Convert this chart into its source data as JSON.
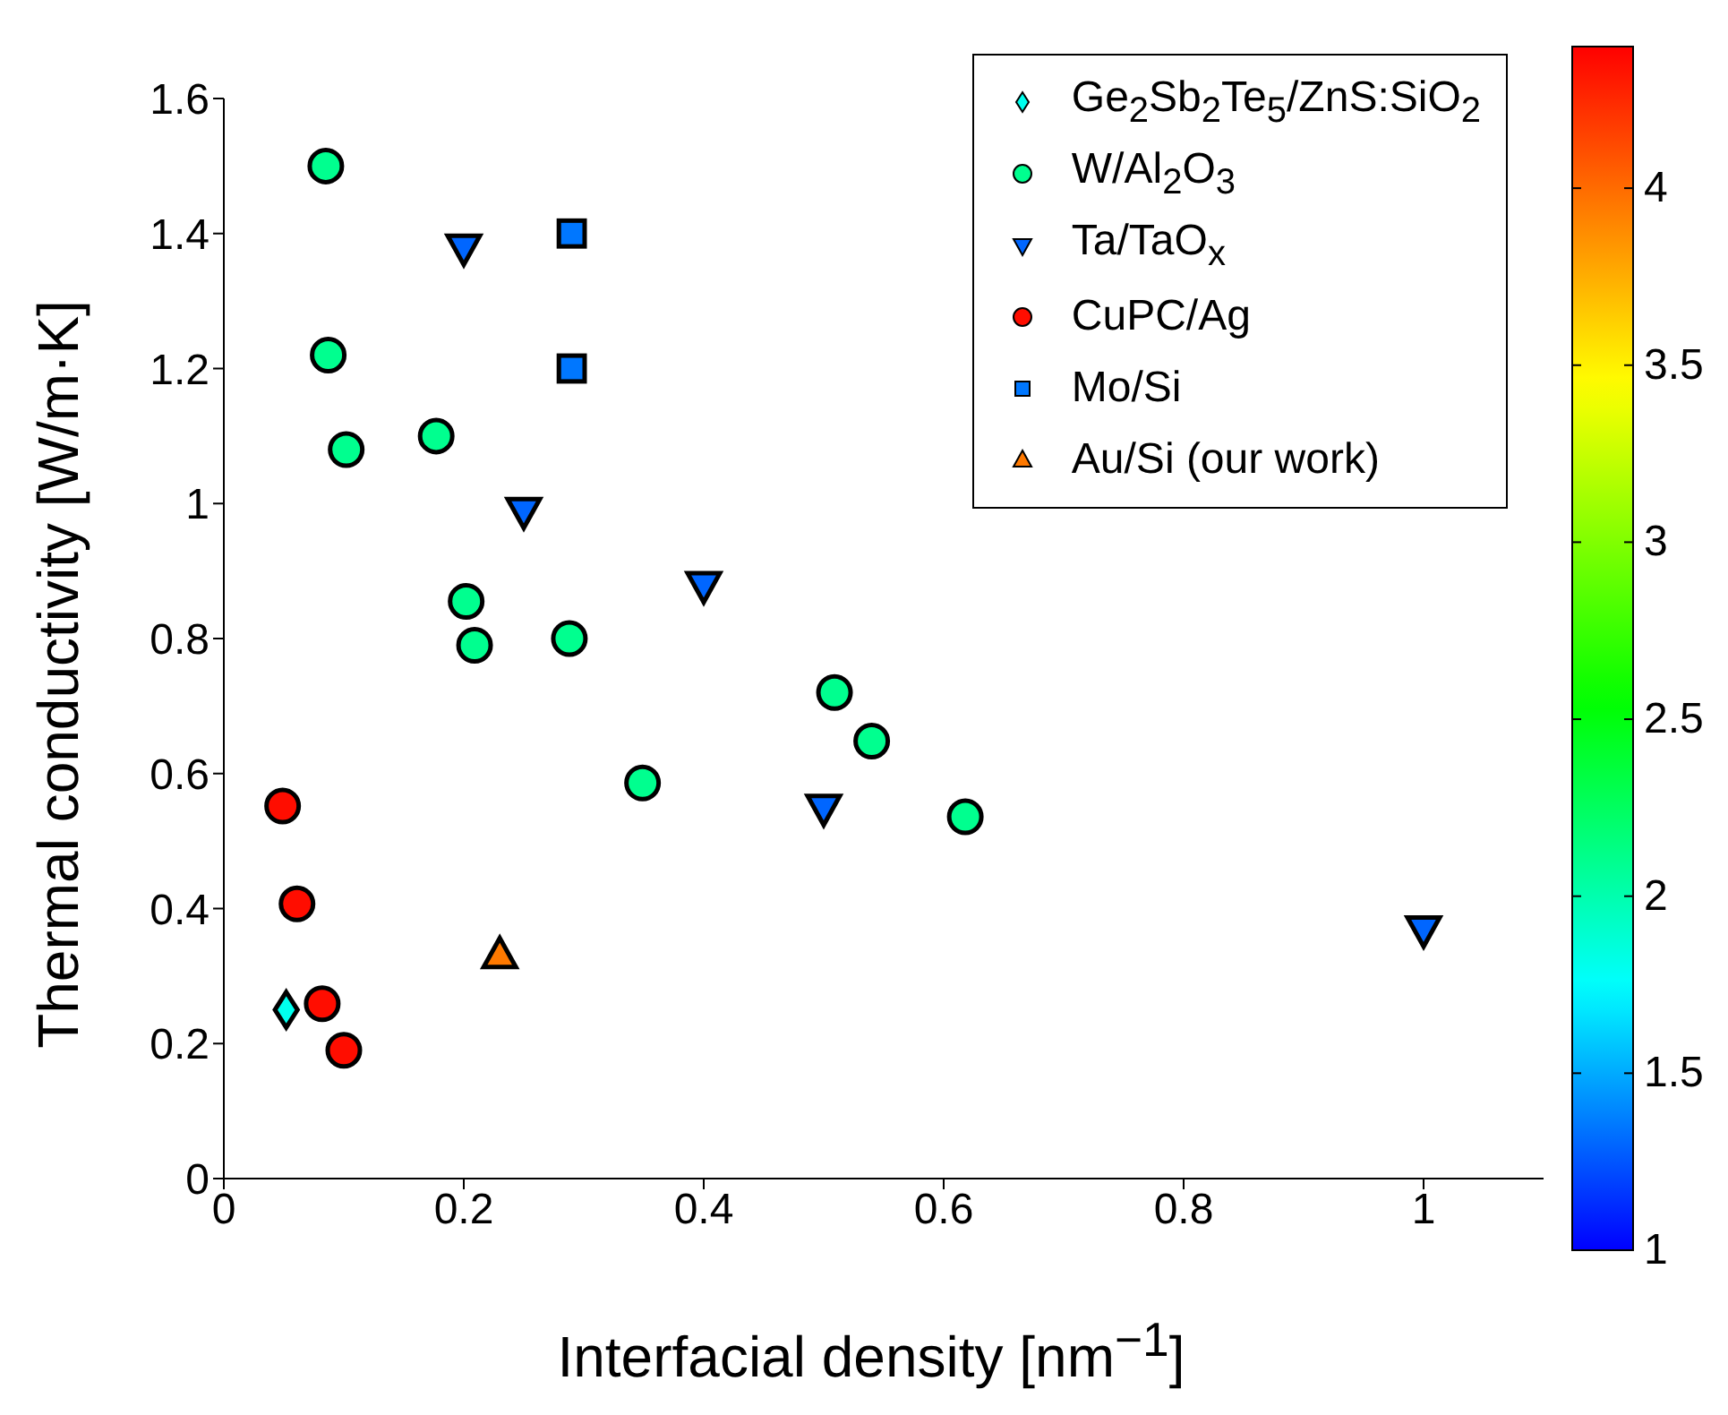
{
  "chart_data": {
    "type": "scatter",
    "xlabel": "Interfacial density [nm$^{−1}$]",
    "ylabel": "Thermal conductivity [W/m·K]",
    "xlim": [
      0,
      1.1
    ],
    "xticks": [
      0,
      0.2,
      0.4,
      0.6,
      0.8,
      1
    ],
    "ylim": [
      0,
      1.6
    ],
    "yticks": [
      0,
      0.2,
      0.4,
      0.6,
      0.8,
      1,
      1.2,
      1.4,
      1.6
    ],
    "clim": [
      1,
      4.4
    ],
    "cticks": [
      1,
      1.5,
      2,
      2.5,
      3,
      3.5,
      4
    ],
    "grid": false,
    "legend": "top right",
    "series": [
      {
        "name": "Ge$_{2}$Sb$_{2}$Te$_{5}$/ZnS:SiO$_{2}$",
        "marker": "diamond",
        "x": [
          0.052
        ],
        "values": [
          0.25
        ],
        "cvalues": [
          1.8
        ]
      },
      {
        "name": "W/Al$_{2}$O$_{3}$",
        "marker": "circle",
        "x": [
          0.085,
          0.087,
          0.102,
          0.177,
          0.202,
          0.209,
          0.288,
          0.349,
          0.509,
          0.54,
          0.618
        ],
        "values": [
          1.5,
          1.22,
          1.08,
          1.1,
          0.855,
          0.79,
          0.8,
          0.586,
          0.72,
          0.648,
          0.536
        ],
        "cvalues": [
          2.1,
          2.1,
          2.1,
          2.1,
          2.1,
          2.1,
          2.1,
          2.1,
          2.1,
          2.1,
          2.1
        ]
      },
      {
        "name": "Ta/TaO$_{x}$",
        "marker": "triangle-down",
        "x": [
          0.2,
          0.25,
          0.4,
          0.5,
          1
        ],
        "values": [
          1.38,
          0.99,
          0.88,
          0.55,
          0.37
        ],
        "cvalues": [
          1.3,
          1.3,
          1.3,
          1.3,
          1.3
        ]
      },
      {
        "name": "CuPC/Ag",
        "marker": "circle",
        "x": [
          0.049,
          0.061,
          0.082,
          0.1
        ],
        "values": [
          0.552,
          0.407,
          0.259,
          0.19
        ],
        "cvalues": [
          4.35,
          4.35,
          4.35,
          4.35
        ]
      },
      {
        "name": "Mo/Si",
        "marker": "square",
        "x": [
          0.29,
          0.29
        ],
        "values": [
          1.4,
          1.2
        ],
        "cvalues": [
          1.35,
          1.35
        ]
      },
      {
        "name": "Au/Si (our work)",
        "marker": "triangle",
        "x": [
          0.23
        ],
        "values": [
          0.33
        ],
        "cvalues": [
          3.95
        ]
      }
    ]
  }
}
